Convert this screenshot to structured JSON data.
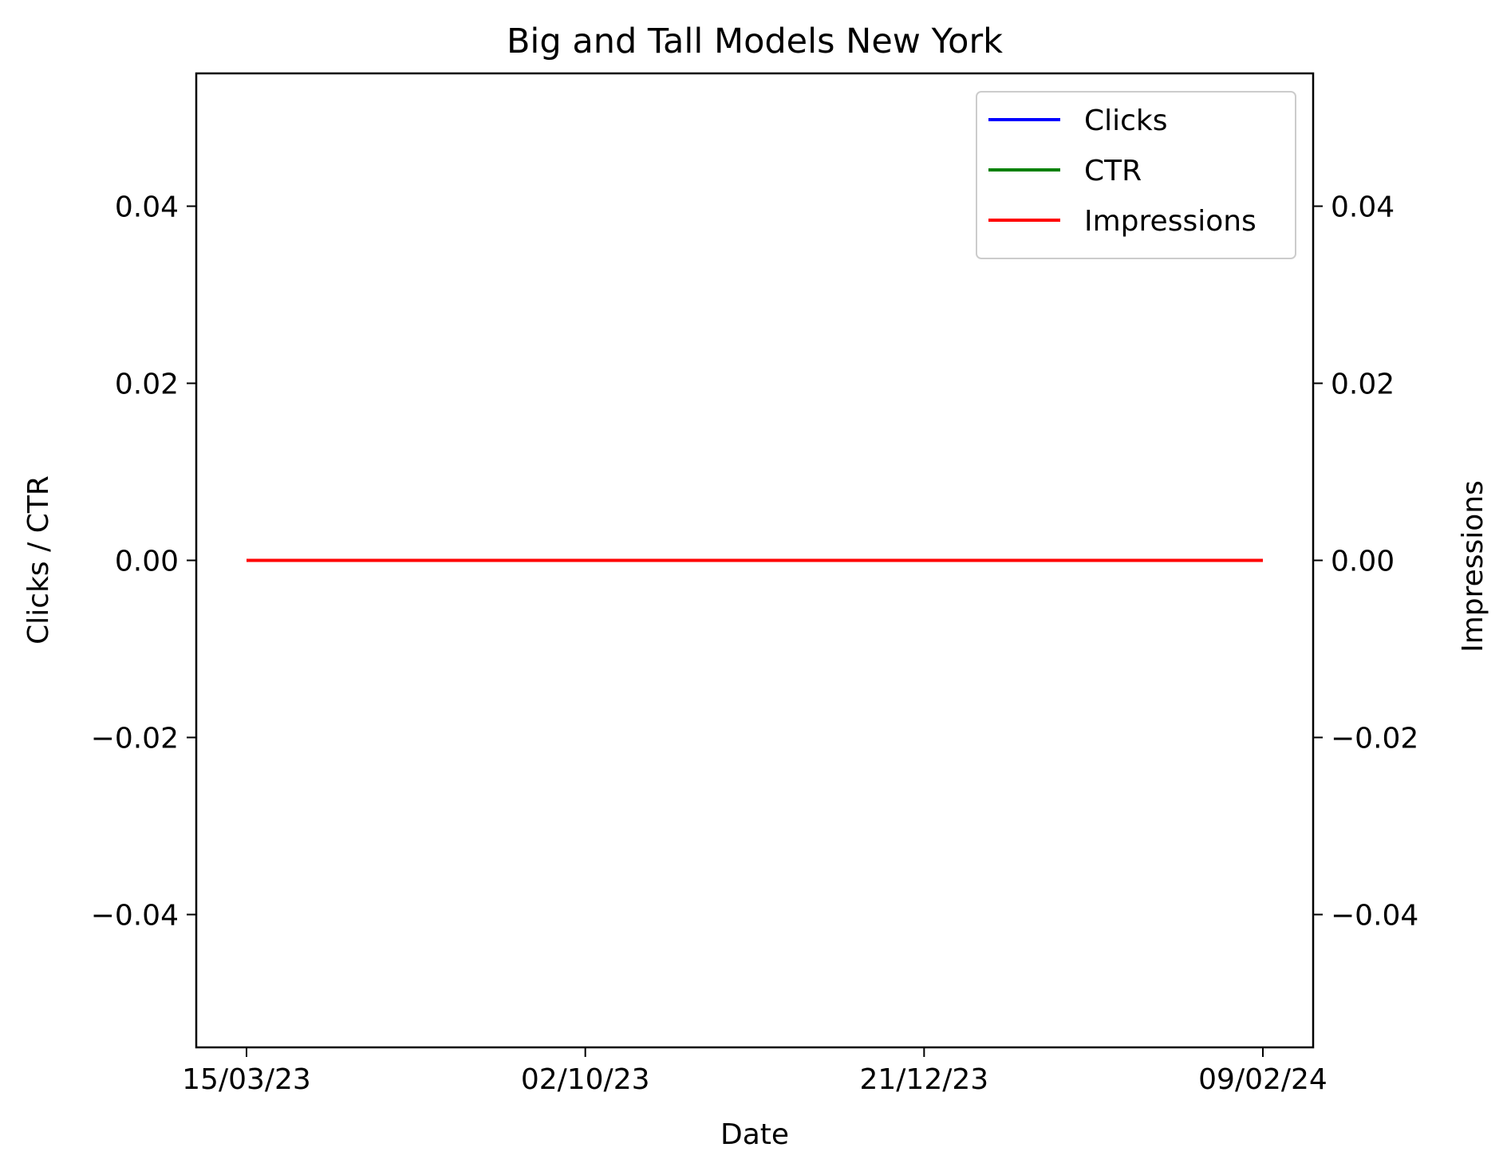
{
  "chart_data": {
    "type": "line",
    "title": "Big and Tall Models New York",
    "xlabel": "Date",
    "ylabel": "Clicks / CTR",
    "ylabel_right": "Impressions",
    "x_tick_labels": [
      "15/03/23",
      "02/10/23",
      "21/12/23",
      "09/02/24"
    ],
    "x": [
      "15/03/23",
      "02/10/23",
      "21/12/23",
      "09/02/24"
    ],
    "ylim": [
      -0.055,
      0.055
    ],
    "ylim_right": [
      -0.055,
      0.055
    ],
    "y_ticks": [
      -0.04,
      -0.02,
      0.0,
      0.02,
      0.04
    ],
    "y_tick_labels": [
      "−0.04",
      "−0.02",
      "0.00",
      "0.02",
      "0.04"
    ],
    "y_ticks_right": [
      -0.04,
      -0.02,
      0.0,
      0.02,
      0.04
    ],
    "y_tick_labels_right": [
      "−0.04",
      "−0.02",
      "0.00",
      "0.02",
      "0.04"
    ],
    "grid": false,
    "legend_position": "top-right",
    "series": [
      {
        "name": "Clicks",
        "axis": "left",
        "color": "#0000ff",
        "values": [
          0,
          0,
          0,
          0
        ]
      },
      {
        "name": "CTR",
        "axis": "left",
        "color": "#008000",
        "values": [
          0,
          0,
          0,
          0
        ]
      },
      {
        "name": "Impressions",
        "axis": "right",
        "color": "#ff0000",
        "values": [
          0,
          0,
          0,
          0
        ]
      }
    ]
  }
}
